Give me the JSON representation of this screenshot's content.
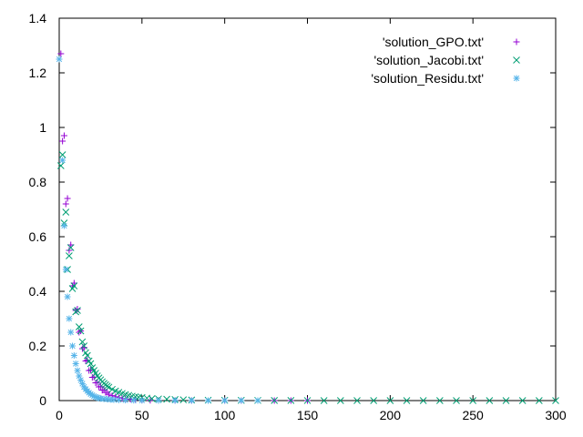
{
  "chart_data": {
    "type": "scatter",
    "title": "",
    "xlabel": "",
    "ylabel": "",
    "xlim": [
      0,
      300
    ],
    "ylim": [
      0,
      1.4
    ],
    "x_ticks": [
      0,
      50,
      100,
      150,
      200,
      250,
      300
    ],
    "y_ticks": [
      0,
      0.2,
      0.4,
      0.6,
      0.8,
      1,
      1.2,
      1.4
    ],
    "x_tick_labels": [
      "0",
      "50",
      "100",
      "150",
      "200",
      "250",
      "300"
    ],
    "y_tick_labels": [
      "0",
      "0.2",
      "0.4",
      "0.6",
      "0.8",
      "1",
      "1.2",
      "1.4"
    ],
    "grid": false,
    "legend_position": "top-right",
    "series": [
      {
        "name": "'solution_GPO.txt'",
        "marker": "plus",
        "color": "#9400d3",
        "points": [
          [
            1,
            1.27
          ],
          [
            2,
            0.95
          ],
          [
            3,
            0.97
          ],
          [
            4,
            0.72
          ],
          [
            5,
            0.74
          ],
          [
            6,
            0.55
          ],
          [
            7,
            0.57
          ],
          [
            8,
            0.42
          ],
          [
            9,
            0.43
          ],
          [
            10,
            0.33
          ],
          [
            11,
            0.335
          ],
          [
            12,
            0.25
          ],
          [
            13,
            0.255
          ],
          [
            14,
            0.19
          ],
          [
            15,
            0.195
          ],
          [
            16,
            0.145
          ],
          [
            17,
            0.148
          ],
          [
            18,
            0.11
          ],
          [
            19,
            0.112
          ],
          [
            20,
            0.085
          ],
          [
            21,
            0.086
          ],
          [
            22,
            0.065
          ],
          [
            23,
            0.066
          ],
          [
            24,
            0.05
          ],
          [
            25,
            0.051
          ],
          [
            26,
            0.038
          ],
          [
            27,
            0.039
          ],
          [
            28,
            0.03
          ],
          [
            29,
            0.03
          ],
          [
            30,
            0.023
          ],
          [
            32,
            0.018
          ],
          [
            34,
            0.014
          ],
          [
            36,
            0.011
          ],
          [
            38,
            0.008
          ],
          [
            40,
            0.006
          ],
          [
            43,
            0.005
          ],
          [
            46,
            0.003
          ],
          [
            50,
            0.002
          ],
          [
            55,
            0.001
          ],
          [
            60,
            0.0008
          ],
          [
            70,
            0.0005
          ],
          [
            80,
            0.0003
          ],
          [
            90,
            0.0002
          ],
          [
            100,
            0.0001
          ],
          [
            110,
            0.0
          ],
          [
            120,
            0.0
          ],
          [
            130,
            0.0
          ],
          [
            140,
            0.0
          ],
          [
            150,
            0.0
          ]
        ]
      },
      {
        "name": "'solution_Jacobi.txt'",
        "marker": "cross",
        "color": "#009e73",
        "points": [
          [
            1,
            0.86
          ],
          [
            2,
            0.9
          ],
          [
            3,
            0.65
          ],
          [
            4,
            0.69
          ],
          [
            5,
            0.48
          ],
          [
            6,
            0.53
          ],
          [
            7,
            0.56
          ],
          [
            8,
            0.41
          ],
          [
            9,
            0.42
          ],
          [
            10,
            0.325
          ],
          [
            11,
            0.33
          ],
          [
            12,
            0.27
          ],
          [
            13,
            0.255
          ],
          [
            14,
            0.215
          ],
          [
            15,
            0.2
          ],
          [
            16,
            0.175
          ],
          [
            17,
            0.165
          ],
          [
            18,
            0.145
          ],
          [
            19,
            0.135
          ],
          [
            20,
            0.12
          ],
          [
            21,
            0.11
          ],
          [
            22,
            0.1
          ],
          [
            23,
            0.09
          ],
          [
            24,
            0.083
          ],
          [
            25,
            0.076
          ],
          [
            26,
            0.069
          ],
          [
            27,
            0.063
          ],
          [
            28,
            0.058
          ],
          [
            29,
            0.053
          ],
          [
            30,
            0.049
          ],
          [
            32,
            0.041
          ],
          [
            34,
            0.035
          ],
          [
            36,
            0.03
          ],
          [
            38,
            0.026
          ],
          [
            40,
            0.022
          ],
          [
            42,
            0.019
          ],
          [
            44,
            0.016
          ],
          [
            46,
            0.014
          ],
          [
            48,
            0.012
          ],
          [
            50,
            0.011
          ],
          [
            53,
            0.009
          ],
          [
            56,
            0.007
          ],
          [
            60,
            0.006
          ],
          [
            65,
            0.005
          ],
          [
            70,
            0.004
          ],
          [
            75,
            0.003
          ],
          [
            80,
            0.002
          ],
          [
            90,
            0.0015
          ],
          [
            100,
            0.001
          ],
          [
            110,
            0.0008
          ],
          [
            120,
            0.0006
          ],
          [
            130,
            0.0004
          ],
          [
            140,
            0.0003
          ],
          [
            150,
            0.0002
          ],
          [
            160,
            0.0001
          ],
          [
            170,
            0.0
          ],
          [
            180,
            0.0
          ],
          [
            190,
            0.0
          ],
          [
            200,
            0.0
          ],
          [
            210,
            0.0
          ],
          [
            220,
            0.0
          ],
          [
            230,
            0.0
          ],
          [
            240,
            0.0
          ],
          [
            250,
            0.0
          ],
          [
            260,
            0.0
          ],
          [
            270,
            0.0
          ],
          [
            280,
            0.0
          ],
          [
            290,
            0.0
          ],
          [
            300,
            0.0
          ]
        ]
      },
      {
        "name": "'solution_Residu.txt'",
        "marker": "star",
        "color": "#56b4e9",
        "points": [
          [
            0,
            1.25
          ],
          [
            2,
            0.88
          ],
          [
            3,
            0.64
          ],
          [
            4,
            0.48
          ],
          [
            5,
            0.38
          ],
          [
            6,
            0.3
          ],
          [
            7,
            0.25
          ],
          [
            8,
            0.2
          ],
          [
            9,
            0.165
          ],
          [
            10,
            0.135
          ],
          [
            11,
            0.11
          ],
          [
            12,
            0.09
          ],
          [
            13,
            0.075
          ],
          [
            14,
            0.062
          ],
          [
            15,
            0.05
          ],
          [
            16,
            0.042
          ],
          [
            17,
            0.035
          ],
          [
            18,
            0.029
          ],
          [
            19,
            0.024
          ],
          [
            20,
            0.02
          ],
          [
            21,
            0.016
          ],
          [
            22,
            0.013
          ],
          [
            23,
            0.011
          ],
          [
            24,
            0.009
          ],
          [
            25,
            0.0075
          ],
          [
            27,
            0.006
          ],
          [
            29,
            0.005
          ],
          [
            31,
            0.004
          ],
          [
            33,
            0.003
          ],
          [
            36,
            0.002
          ],
          [
            40,
            0.0015
          ],
          [
            45,
            0.001
          ],
          [
            50,
            0.0007
          ],
          [
            60,
            0.0004
          ],
          [
            70,
            0.0002
          ],
          [
            80,
            0.0001
          ],
          [
            90,
            0.0
          ],
          [
            100,
            0.0
          ],
          [
            110,
            0.0
          ],
          [
            120,
            0.0
          ]
        ]
      }
    ]
  }
}
